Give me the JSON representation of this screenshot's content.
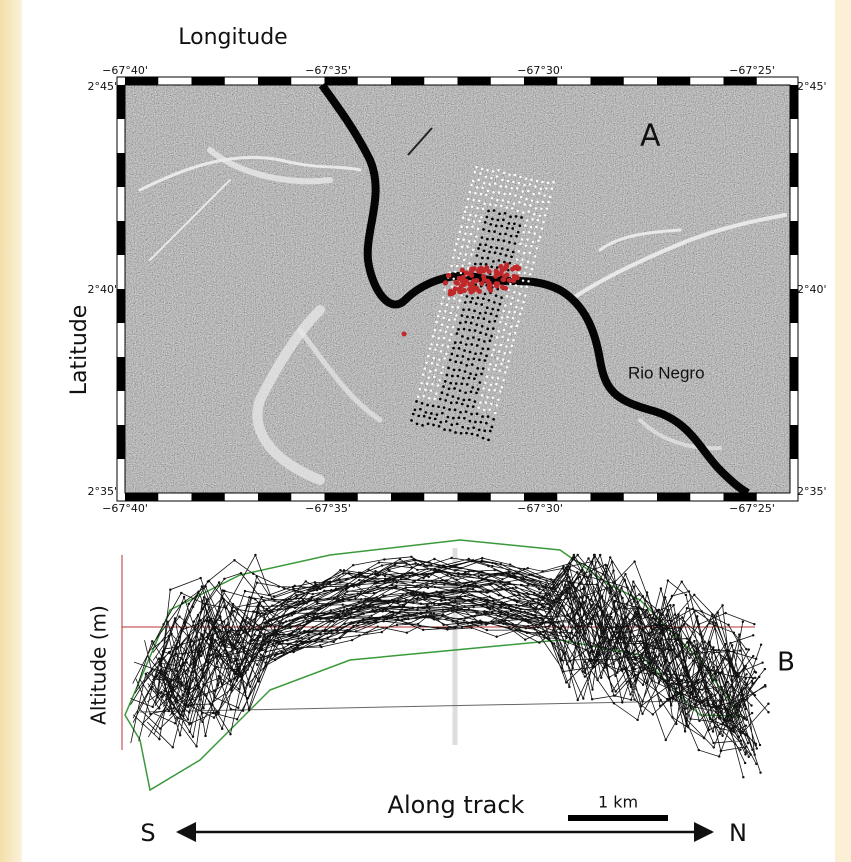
{
  "panel_a": {
    "x_axis_title": "Longitude",
    "y_axis_title": "Latitude",
    "lon_ticks": [
      "−67°40'",
      "−67°35'",
      "−67°30'",
      "−67°25'"
    ],
    "lat_ticks": [
      "2°45'",
      "2°40'",
      "2°35'"
    ],
    "panel_label": "A",
    "river_label": "Rio Negro"
  },
  "panel_b": {
    "y_axis_title": "Altitude (m)",
    "x_axis_title": "Along track",
    "panel_label": "B",
    "scale_label": "1 km",
    "start_label": "S",
    "end_label": "N"
  }
}
